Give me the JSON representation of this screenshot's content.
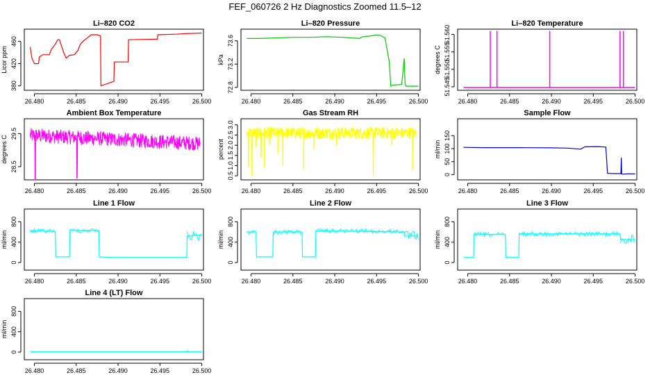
{
  "figure": {
    "title": "FEF_060726  2 Hz Diagnostics Zoomed 11.5–12"
  },
  "chart_data": [
    {
      "type": "line",
      "title": "Li–820 CO2",
      "ylabel": "Licor ppm",
      "color": "#ff0000",
      "xlim": [
        26.4788,
        26.5002
      ],
      "ylim": [
        372,
        482
      ],
      "yticks": [
        380,
        420,
        460
      ],
      "xticks": [
        "26.480",
        "26.485",
        "26.490",
        "26.495",
        "26.500"
      ],
      "series": [
        {
          "x": [
            26.4795,
            26.4797,
            26.48,
            26.4805,
            26.4806,
            26.481,
            26.4818,
            26.482,
            26.4825,
            26.4828,
            26.483,
            26.4835,
            26.4838,
            26.4842,
            26.4848,
            26.4852,
            26.4855,
            26.4858,
            26.4868,
            26.4875,
            26.4879,
            26.48795,
            26.4895,
            26.48955,
            26.4912,
            26.49125,
            26.4947,
            26.49475,
            26.497,
            26.498,
            26.5
          ],
          "y": [
            450,
            430,
            420,
            420,
            432,
            436,
            436,
            445,
            455,
            463,
            463,
            440,
            430,
            435,
            436,
            444,
            455,
            460,
            472,
            472,
            470,
            380,
            388,
            423,
            423,
            463,
            464,
            472,
            473,
            474,
            475
          ]
        }
      ]
    },
    {
      "type": "line",
      "title": "Li–820 Pressure",
      "ylabel": "kPa",
      "color": "#00cc00",
      "xlim": [
        26.4788,
        26.5002
      ],
      "ylim": [
        72.75,
        73.8
      ],
      "yticks": [
        72.8,
        73.2,
        73.6
      ],
      "xticks": [
        "26.480",
        "26.485",
        "26.490",
        "26.495",
        "26.500"
      ],
      "series": [
        {
          "x": [
            26.4795,
            26.481,
            26.483,
            26.485,
            26.487,
            26.489,
            26.491,
            26.492,
            26.493,
            26.4933,
            26.494,
            26.495,
            26.4955,
            26.496,
            26.4965,
            26.4967,
            26.497,
            26.498,
            26.4983,
            26.4984,
            26.4985,
            26.5
          ],
          "y": [
            73.64,
            73.64,
            73.65,
            73.66,
            73.66,
            73.67,
            73.66,
            73.65,
            73.64,
            73.67,
            73.68,
            73.7,
            73.69,
            73.65,
            73.25,
            72.82,
            72.84,
            72.85,
            73.3,
            72.86,
            72.82,
            72.82
          ]
        }
      ]
    },
    {
      "type": "line",
      "title": "Li–820 Temperature",
      "ylabel": "degrees C",
      "color": "#ff00ff",
      "xlim": [
        26.4788,
        26.5002
      ],
      "ylim": [
        51.544,
        51.5615
      ],
      "yticks": [
        51.545,
        51.55,
        51.555,
        51.56
      ],
      "ytick_labels": [
        "51.545",
        "51.550",
        "51.555",
        "51.560"
      ],
      "xticks": [
        "26.480",
        "26.485",
        "26.490",
        "26.495",
        "26.500"
      ],
      "series": [
        {
          "baseline": 51.5448,
          "spike_top": 51.561,
          "spikes_x": [
            26.4827,
            26.4835,
            26.4898,
            26.4982,
            26.4986
          ]
        }
      ]
    },
    {
      "type": "line",
      "title": "Ambient Box Temperature",
      "ylabel": "degrees C",
      "color": "#ff00ff",
      "xlim": [
        26.4788,
        26.5002
      ],
      "ylim": [
        28.1,
        29.95
      ],
      "yticks": [
        28.5,
        29.5
      ],
      "xticks": [
        "26.480",
        "26.485",
        "26.490",
        "26.495",
        "26.500"
      ],
      "series": [
        {
          "noise_band": {
            "x_start": 26.4795,
            "x_end": 26.4998,
            "center_start": 29.45,
            "center_end": 29.2,
            "half_width": 0.22
          },
          "dips": [
            {
              "x": 26.4801,
              "y": 28.1
            },
            {
              "x": 26.4851,
              "y": 28.15
            }
          ]
        }
      ]
    },
    {
      "type": "line",
      "title": "Gas Stream RH",
      "ylabel": "percent",
      "color": "#ffff00",
      "xlim": [
        26.4788,
        26.5002
      ],
      "ylim": [
        0.3,
        3.3
      ],
      "yticks": [
        0.5,
        1.0,
        1.5,
        2.0,
        2.5,
        3.0
      ],
      "ytick_labels": [
        "0.5",
        "1.0",
        "1.5",
        "2.0",
        "2.5",
        "3.0"
      ],
      "xticks": [
        "26.480",
        "26.485",
        "26.490",
        "26.495",
        "26.500"
      ],
      "series": [
        {
          "noise_band": {
            "x_start": 26.4795,
            "x_end": 26.4998,
            "center_start": 2.6,
            "center_end": 2.6,
            "half_width": 0.3
          },
          "dips": [
            {
              "x": 26.4797,
              "y": 0.9
            },
            {
              "x": 26.4801,
              "y": 0.5
            },
            {
              "x": 26.4806,
              "y": 1.9
            },
            {
              "x": 26.4812,
              "y": 1.4
            },
            {
              "x": 26.4816,
              "y": 0.9
            },
            {
              "x": 26.4822,
              "y": 2.0
            },
            {
              "x": 26.4832,
              "y": 1.6
            },
            {
              "x": 26.4838,
              "y": 1.0
            },
            {
              "x": 26.4863,
              "y": 0.8
            },
            {
              "x": 26.4875,
              "y": 1.8
            },
            {
              "x": 26.4902,
              "y": 2.0
            },
            {
              "x": 26.4946,
              "y": 0.45
            },
            {
              "x": 26.4968,
              "y": 2.0
            },
            {
              "x": 26.4993,
              "y": 0.8
            }
          ]
        }
      ]
    },
    {
      "type": "line",
      "title": "Sample Flow",
      "ylabel": "ml/min",
      "color": "#0000cc",
      "xlim": [
        26.4788,
        26.5002
      ],
      "ylim": [
        -20,
        215
      ],
      "yticks": [
        0,
        50,
        100,
        150
      ],
      "xticks": [
        "26.480",
        "26.485",
        "26.490",
        "26.495",
        "26.500"
      ],
      "series": [
        {
          "x": [
            26.4795,
            26.482,
            26.486,
            26.49,
            26.492,
            26.4935,
            26.494,
            26.4955,
            26.4965,
            26.4967,
            26.4975,
            26.4983,
            26.49835,
            26.4984,
            26.4985,
            26.499,
            26.5
          ],
          "y": [
            105,
            104,
            104,
            103,
            102,
            98,
            107,
            108,
            106,
            5,
            4,
            4,
            65,
            3,
            2,
            3,
            3
          ]
        }
      ]
    },
    {
      "type": "line",
      "title": "Line 1 Flow",
      "ylabel": "ml/min",
      "color": "#00ffff",
      "xlim": [
        26.4788,
        26.5002
      ],
      "ylim": [
        -150,
        1050
      ],
      "yticks": [
        0,
        400,
        800
      ],
      "xticks": [
        "26.480",
        "26.485",
        "26.490",
        "26.495",
        "26.500"
      ],
      "series": [
        {
          "x": [
            26.4795,
            26.4825,
            26.48255,
            26.4842,
            26.48425,
            26.4877,
            26.48775,
            26.4893,
            26.4982,
            26.49825,
            26.5
          ],
          "y": [
            620,
            610,
            110,
            110,
            630,
            630,
            110,
            100,
            100,
            520,
            540
          ]
        }
      ]
    },
    {
      "type": "line",
      "title": "Line 2 Flow",
      "ylabel": "ml/min",
      "color": "#00ffff",
      "xlim": [
        26.4788,
        26.5002
      ],
      "ylim": [
        -150,
        1050
      ],
      "yticks": [
        0,
        400,
        800
      ],
      "xticks": [
        "26.480",
        "26.485",
        "26.490",
        "26.495",
        "26.500"
      ],
      "series": [
        {
          "x": [
            26.4795,
            26.4806,
            26.48065,
            26.4826,
            26.48265,
            26.4861,
            26.48615,
            26.4877,
            26.48775,
            26.494,
            26.4983,
            26.49835,
            26.5
          ],
          "y": [
            600,
            600,
            110,
            110,
            600,
            600,
            110,
            110,
            620,
            610,
            600,
            520,
            520
          ]
        }
      ]
    },
    {
      "type": "line",
      "title": "Line 3 Flow",
      "ylabel": "ml/min",
      "color": "#00ffff",
      "xlim": [
        26.4788,
        26.5002
      ],
      "ylim": [
        -150,
        1050
      ],
      "yticks": [
        0,
        400,
        800
      ],
      "xticks": [
        "26.480",
        "26.485",
        "26.490",
        "26.495",
        "26.500"
      ],
      "series": [
        {
          "x": [
            26.4795,
            26.4807,
            26.48075,
            26.4845,
            26.48455,
            26.4861,
            26.48615,
            26.492,
            26.4982,
            26.49825,
            26.5
          ],
          "y": [
            100,
            100,
            550,
            550,
            100,
            100,
            560,
            560,
            560,
            450,
            450
          ]
        }
      ]
    },
    {
      "type": "line",
      "title": "Line 4 (LT) Flow",
      "ylabel": "ml/min",
      "color": "#00ffff",
      "xlim": [
        26.4788,
        26.5002
      ],
      "ylim": [
        -150,
        1050
      ],
      "yticks": [
        0,
        400,
        800
      ],
      "xticks": [
        "26.480",
        "26.485",
        "26.490",
        "26.495",
        "26.500"
      ],
      "series": [
        {
          "x": [
            26.4795,
            26.49,
            26.4983,
            26.49835,
            26.4984,
            26.5
          ],
          "y": [
            5,
            5,
            5,
            25,
            5,
            5
          ]
        }
      ]
    }
  ]
}
